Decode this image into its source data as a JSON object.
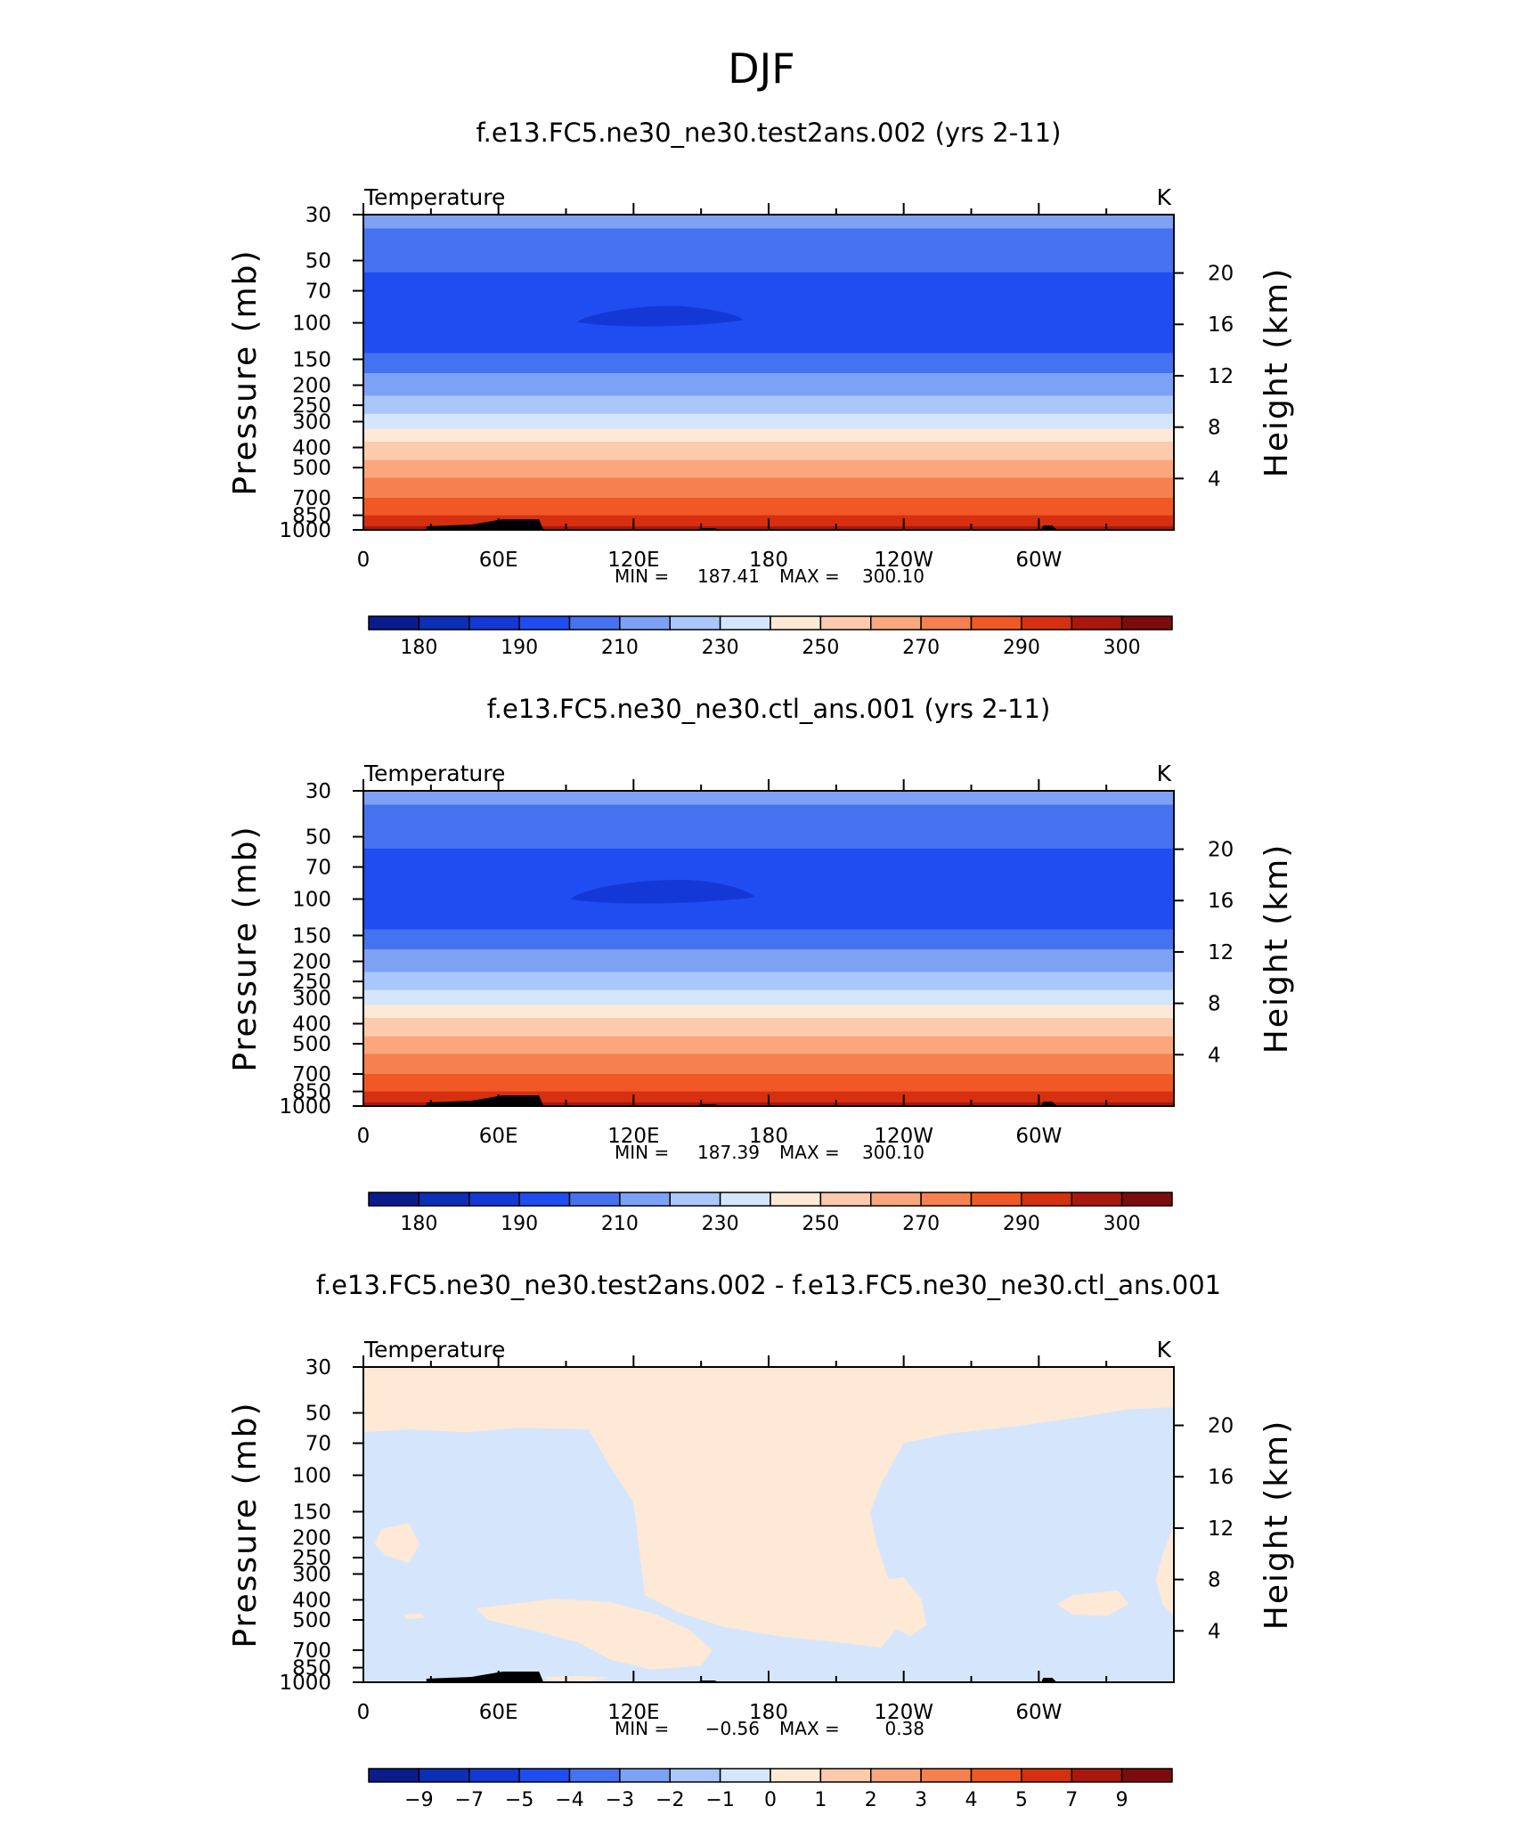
{
  "figure": {
    "title": "DJF"
  },
  "colors": {
    "full_field_palette": [
      "#0a1c8c",
      "#0d2fb6",
      "#1438d6",
      "#1f4df2",
      "#4572f0",
      "#7ca1f5",
      "#a9c7fb",
      "#d5e6fc",
      "#fde9d5",
      "#fccbae",
      "#faa77e",
      "#f6804f",
      "#f05826",
      "#d63010",
      "#aa170c",
      "#7e0b0b"
    ],
    "diff_palette": [
      "#0a1c8c",
      "#0d2fb6",
      "#1438d6",
      "#1f4df2",
      "#4572f0",
      "#7ca1f5",
      "#a9c7fb",
      "#d5e6fc",
      "#fde9d5",
      "#fccbae",
      "#faa77e",
      "#f6804f",
      "#f05826",
      "#d63010",
      "#aa170c",
      "#7e0b0b"
    ],
    "topography": "#000000"
  },
  "chart_data": [
    {
      "type": "heatmap",
      "title": "f.e13.FC5.ne30_ne30.test2ans.002 (yrs 2-11)",
      "left_label": "Temperature",
      "right_label": "K",
      "xlabel": "",
      "ylabel": "Pressure (mb)",
      "ylabel_right": "Height (km)",
      "x_ticks": [
        "0",
        "60E",
        "120E",
        "180",
        "120W",
        "60W"
      ],
      "y_ticks": [
        "30",
        "50",
        "70",
        "100",
        "150",
        "200",
        "250",
        "300",
        "400",
        "500",
        "700",
        "850",
        "1000"
      ],
      "y_right_ticks": [
        "20",
        "16",
        "12",
        "8",
        "4"
      ],
      "ylim": [
        1000,
        30
      ],
      "xlim": [
        0,
        360
      ],
      "y_scale": "log",
      "min_label": "MIN =",
      "min_value": "187.41",
      "max_label": "MAX =",
      "max_value": "300.10",
      "colorbar_labels": [
        "180",
        "190",
        "210",
        "230",
        "250",
        "270",
        "290",
        "300"
      ],
      "level_bands": [
        {
          "p_bottom": 35,
          "p_top": 30,
          "color_index": 5
        },
        {
          "p_bottom": 57,
          "p_top": 35,
          "color_index": 4
        },
        {
          "p_bottom": 140,
          "p_top": 57,
          "color_index": 3
        },
        {
          "p_bottom": 175,
          "p_top": 140,
          "color_index": 4
        },
        {
          "p_bottom": 225,
          "p_top": 175,
          "color_index": 5
        },
        {
          "p_bottom": 275,
          "p_top": 225,
          "color_index": 6
        },
        {
          "p_bottom": 325,
          "p_top": 275,
          "color_index": 7
        },
        {
          "p_bottom": 375,
          "p_top": 325,
          "color_index": 8
        },
        {
          "p_bottom": 460,
          "p_top": 375,
          "color_index": 9
        },
        {
          "p_bottom": 560,
          "p_top": 460,
          "color_index": 10
        },
        {
          "p_bottom": 700,
          "p_top": 560,
          "color_index": 11
        },
        {
          "p_bottom": 850,
          "p_top": 700,
          "color_index": 12
        },
        {
          "p_bottom": 960,
          "p_top": 850,
          "color_index": 13
        },
        {
          "p_bottom": 1000,
          "p_top": 960,
          "color_index": 14
        }
      ],
      "cold_core": {
        "lon_west": 95,
        "lon_east": 168,
        "p_top": 82,
        "p_bottom": 103,
        "color_index": 2
      }
    },
    {
      "type": "heatmap",
      "title": "f.e13.FC5.ne30_ne30.ctl_ans.001 (yrs 2-11)",
      "left_label": "Temperature",
      "right_label": "K",
      "xlabel": "",
      "ylabel": "Pressure (mb)",
      "ylabel_right": "Height (km)",
      "x_ticks": [
        "0",
        "60E",
        "120E",
        "180",
        "120W",
        "60W"
      ],
      "y_ticks": [
        "30",
        "50",
        "70",
        "100",
        "150",
        "200",
        "250",
        "300",
        "400",
        "500",
        "700",
        "850",
        "1000"
      ],
      "y_right_ticks": [
        "20",
        "16",
        "12",
        "8",
        "4"
      ],
      "ylim": [
        1000,
        30
      ],
      "xlim": [
        0,
        360
      ],
      "y_scale": "log",
      "min_label": "MIN =",
      "min_value": "187.39",
      "max_label": "MAX =",
      "max_value": "300.10",
      "colorbar_labels": [
        "180",
        "190",
        "210",
        "230",
        "250",
        "270",
        "290",
        "300"
      ],
      "level_bands": [
        {
          "p_bottom": 35,
          "p_top": 30,
          "color_index": 5
        },
        {
          "p_bottom": 57,
          "p_top": 35,
          "color_index": 4
        },
        {
          "p_bottom": 140,
          "p_top": 57,
          "color_index": 3
        },
        {
          "p_bottom": 175,
          "p_top": 140,
          "color_index": 4
        },
        {
          "p_bottom": 225,
          "p_top": 175,
          "color_index": 5
        },
        {
          "p_bottom": 275,
          "p_top": 225,
          "color_index": 6
        },
        {
          "p_bottom": 325,
          "p_top": 275,
          "color_index": 7
        },
        {
          "p_bottom": 375,
          "p_top": 325,
          "color_index": 8
        },
        {
          "p_bottom": 460,
          "p_top": 375,
          "color_index": 9
        },
        {
          "p_bottom": 560,
          "p_top": 460,
          "color_index": 10
        },
        {
          "p_bottom": 700,
          "p_top": 560,
          "color_index": 11
        },
        {
          "p_bottom": 850,
          "p_top": 700,
          "color_index": 12
        },
        {
          "p_bottom": 960,
          "p_top": 850,
          "color_index": 13
        },
        {
          "p_bottom": 1000,
          "p_top": 960,
          "color_index": 14
        }
      ],
      "cold_core": {
        "lon_west": 92,
        "lon_east": 173,
        "p_top": 80,
        "p_bottom": 104,
        "color_index": 2
      }
    },
    {
      "type": "heatmap",
      "title": "f.e13.FC5.ne30_ne30.test2ans.002 - f.e13.FC5.ne30_ne30.ctl_ans.001",
      "left_label": "Temperature",
      "right_label": "K",
      "xlabel": "",
      "ylabel": "Pressure (mb)",
      "ylabel_right": "Height (km)",
      "x_ticks": [
        "0",
        "60E",
        "120E",
        "180",
        "120W",
        "60W"
      ],
      "y_ticks": [
        "30",
        "50",
        "70",
        "100",
        "150",
        "200",
        "250",
        "300",
        "400",
        "500",
        "700",
        "850",
        "1000"
      ],
      "y_right_ticks": [
        "20",
        "16",
        "12",
        "8",
        "4"
      ],
      "ylim": [
        1000,
        30
      ],
      "xlim": [
        0,
        360
      ],
      "y_scale": "log",
      "min_label": "MIN =",
      "min_value": "−0.56",
      "max_label": "MAX =",
      "max_value": "0.38",
      "colorbar_labels": [
        "−9",
        "−7",
        "−5",
        "−4",
        "−3",
        "−2",
        "−1",
        "0",
        "1",
        "2",
        "3",
        "4",
        "5",
        "7",
        "9"
      ],
      "background_color_index": 8,
      "negative_color_index": 7,
      "negative_regions": [
        [
          [
            0,
            62
          ],
          [
            20,
            60
          ],
          [
            45,
            62
          ],
          [
            70,
            59
          ],
          [
            100,
            60
          ],
          [
            108,
            85
          ],
          [
            120,
            135
          ],
          [
            125,
            380
          ],
          [
            140,
            460
          ],
          [
            160,
            540
          ],
          [
            185,
            600
          ],
          [
            210,
            640
          ],
          [
            230,
            680
          ],
          [
            240,
            500
          ],
          [
            235,
            360
          ],
          [
            228,
            215
          ],
          [
            225,
            150
          ],
          [
            230,
            110
          ],
          [
            240,
            70
          ],
          [
            260,
            63
          ],
          [
            290,
            58
          ],
          [
            320,
            52
          ],
          [
            340,
            48
          ],
          [
            360,
            47
          ],
          [
            360,
            175
          ],
          [
            355,
            240
          ],
          [
            352,
            320
          ],
          [
            355,
            420
          ],
          [
            360,
            480
          ],
          [
            360,
            1000
          ],
          [
            0,
            1000
          ]
        ]
      ],
      "positive_islands": [
        [
          [
            8,
            182
          ],
          [
            20,
            170
          ],
          [
            25,
            215
          ],
          [
            20,
            265
          ],
          [
            10,
            245
          ],
          [
            5,
            215
          ]
        ],
        [
          [
            50,
            440
          ],
          [
            85,
            395
          ],
          [
            110,
            410
          ],
          [
            130,
            470
          ],
          [
            145,
            560
          ],
          [
            155,
            700
          ],
          [
            150,
            830
          ],
          [
            128,
            870
          ],
          [
            110,
            780
          ],
          [
            95,
            640
          ],
          [
            75,
            560
          ],
          [
            55,
            500
          ]
        ],
        [
          [
            225,
            330
          ],
          [
            240,
            310
          ],
          [
            248,
            400
          ],
          [
            250,
            530
          ],
          [
            243,
            600
          ],
          [
            232,
            520
          ],
          [
            226,
            410
          ]
        ],
        [
          [
            315,
            380
          ],
          [
            335,
            360
          ],
          [
            340,
            420
          ],
          [
            330,
            480
          ],
          [
            315,
            470
          ],
          [
            308,
            420
          ]
        ],
        [
          [
            145,
            185
          ],
          [
            153,
            175
          ],
          [
            158,
            220
          ],
          [
            150,
            245
          ],
          [
            143,
            215
          ]
        ],
        [
          [
            18,
            470
          ],
          [
            26,
            465
          ],
          [
            27,
            490
          ],
          [
            19,
            495
          ]
        ],
        [
          [
            80,
            940
          ],
          [
            95,
            930
          ],
          [
            110,
            950
          ],
          [
            100,
            985
          ],
          [
            82,
            975
          ]
        ]
      ]
    }
  ]
}
